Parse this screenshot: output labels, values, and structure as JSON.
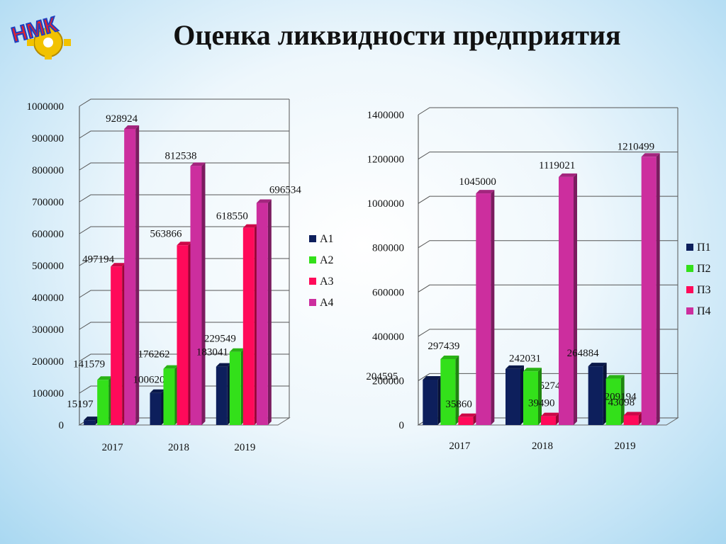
{
  "slide": {
    "title": "Оценка ликвидности предприятия",
    "logo_text": "НМК"
  },
  "colors": {
    "navy": "#0d1f5c",
    "green": "#33e01a",
    "red": "#ff0a5a",
    "magenta": "#cc2e9e"
  },
  "chart_data": [
    {
      "type": "bar",
      "categories": [
        "2017",
        "2018",
        "2019"
      ],
      "ylim": [
        0,
        1000000
      ],
      "yticks": [
        "0",
        "100000",
        "200000",
        "300000",
        "400000",
        "500000",
        "600000",
        "700000",
        "800000",
        "900000",
        "1000000"
      ],
      "grid": true,
      "legend_position": "right",
      "series": [
        {
          "name": "А1",
          "color": "#0d1f5c",
          "values": [
            15197,
            100620,
            183041
          ],
          "labels": [
            "15197",
            "100620",
            "183041"
          ]
        },
        {
          "name": "А2",
          "color": "#33e01a",
          "values": [
            141579,
            176262,
            229549
          ],
          "labels": [
            "141579",
            "176262",
            "229549"
          ]
        },
        {
          "name": "А3",
          "color": "#ff0a5a",
          "values": [
            497194,
            563866,
            618550
          ],
          "labels": [
            "497194",
            "563866",
            "618550"
          ]
        },
        {
          "name": "А4",
          "color": "#cc2e9e",
          "values": [
            928924,
            812538,
            696534
          ],
          "labels": [
            "928924",
            "812538",
            "696534"
          ]
        }
      ]
    },
    {
      "type": "bar",
      "categories": [
        "2017",
        "2018",
        "2019"
      ],
      "ylim": [
        0,
        1400000
      ],
      "yticks": [
        "0",
        "200000",
        "400000",
        "600000",
        "800000",
        "1000000",
        "1200000",
        "1400000"
      ],
      "grid": true,
      "legend_position": "right",
      "series": [
        {
          "name": "П1",
          "color": "#0d1f5c",
          "values": [
            204595,
            252744,
            264884
          ],
          "labels": [
            "204595",
            "252744",
            "264884"
          ]
        },
        {
          "name": "П2",
          "color": "#33e01a",
          "values": [
            297439,
            242031,
            209194
          ],
          "labels": [
            "297439",
            "242031",
            "209194"
          ]
        },
        {
          "name": "П3",
          "color": "#ff0a5a",
          "values": [
            35860,
            39490,
            43098
          ],
          "labels": [
            "35860",
            "39490",
            "43098"
          ]
        },
        {
          "name": "П4",
          "color": "#cc2e9e",
          "values": [
            1045000,
            1119021,
            1210499
          ],
          "labels": [
            "1045000",
            "1119021",
            "1210499"
          ]
        }
      ]
    }
  ]
}
